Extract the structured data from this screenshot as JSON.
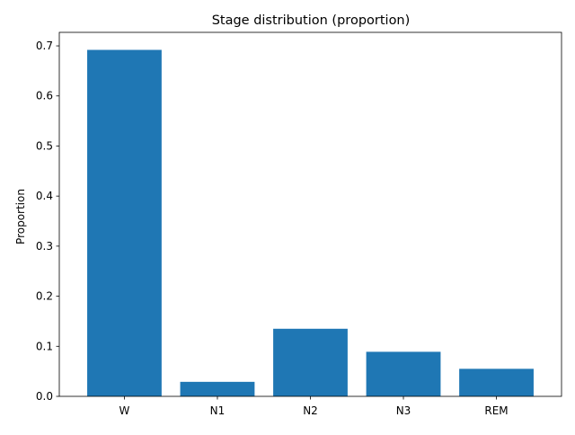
{
  "chart_data": {
    "type": "bar",
    "title": "Stage distribution (proportion)",
    "xlabel": "",
    "ylabel": "Proportion",
    "categories": [
      "W",
      "N1",
      "N2",
      "N3",
      "REM"
    ],
    "values": [
      0.692,
      0.029,
      0.135,
      0.089,
      0.055
    ],
    "ylim": [
      0,
      0.727
    ],
    "yticks": [
      0.0,
      0.1,
      0.2,
      0.3,
      0.4,
      0.5,
      0.6,
      0.7
    ],
    "ytick_labels": [
      "0.0",
      "0.1",
      "0.2",
      "0.3",
      "0.4",
      "0.5",
      "0.6",
      "0.7"
    ],
    "grid": false,
    "bar_color": "#1f77b4"
  }
}
